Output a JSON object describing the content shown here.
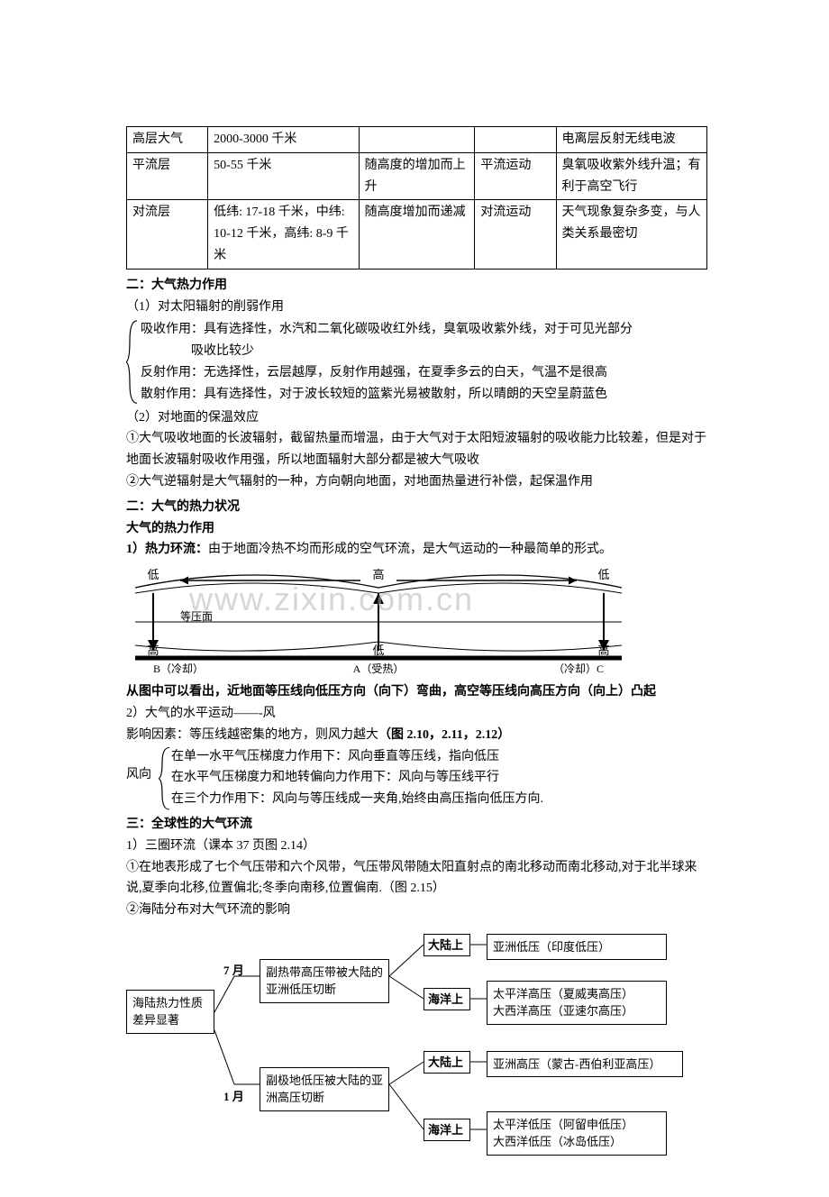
{
  "table": {
    "cols_width": [
      "14%",
      "26%",
      "20%",
      "14%",
      "26%"
    ],
    "rows": [
      [
        "高层大气",
        "2000-3000 千米",
        "",
        "",
        "电离层反射无线电波"
      ],
      [
        "平流层",
        "50-55 千米",
        "随高度的增加而上升",
        "平流运动",
        "臭氧吸收紫外线升温；有利于高空飞行"
      ],
      [
        "对流层",
        "低纬: 17-18 千米，中纬: 10-12 千米，高纬: 8-9 千米",
        "随高度增加而递减",
        "对流运动",
        "天气现象复杂多变，与人类关系最密切"
      ]
    ]
  },
  "sec1_title": "二：大气热力作用",
  "sec1_line1": "（1）对太阳辐射的削弱作用",
  "sec1_b1": "吸收作用：具有选择性，水汽和二氧化碳吸收红外线，臭氧吸收紫外线，对于可见光部分",
  "sec1_b1b": "吸收比较少",
  "sec1_b2": "反射作用：无选择性，云层越厚，反射作用越强，在夏季多云的白天，气温不是很高",
  "sec1_b3": "散射作用：具有选择性，对于波长较短的篮紫光易被散射，所以晴朗的天空呈蔚蓝色",
  "sec1_line2": "（2）对地面的保温效应",
  "sec1_p1": "①大气吸收地面的长波辐射，截留热量而增温，由于大气对于太阳短波辐射的吸收能力比较差，但是对于地面长波辐射吸收作用强，所以地面辐射大部分都是被大气吸收",
  "sec1_p2": "②大气逆辐射是大气辐射的一种，方向朝向地面，对地面热量进行补偿，起保温作用",
  "sec2_title": "二：大气的热力状况",
  "sec2_sub": "大气的热力作用",
  "sec2_line1_a": "1）热力环流：",
  "sec2_line1_b": "由于地面冷热不均而形成的空气环流，是大气运动的一种最简单的形式。",
  "diagram": {
    "top_labels": [
      "低",
      "高",
      "低"
    ],
    "bottom_labels": [
      "高",
      "低",
      "高"
    ],
    "axis_labels": [
      "B（冷却）",
      "A（受热）",
      "（冷却）C"
    ],
    "isobar_label": "等压面",
    "watermark": "www.zixin.com.cn",
    "line_color": "#000000",
    "bg": "#ffffff"
  },
  "sec2_concl": "从图中可以看出，近地面等压线向低压方向（向下）弯曲，高空等压线向高压方向（向上）凸起",
  "sec2_wind_title": "2）大气的水平运动——-风",
  "sec2_wind_line": "影响因素：等压线越密集的地方，则风力越大",
  "sec2_wind_ref": "（图 2.10，2.11，2.12）",
  "wind_label": "风向",
  "wind_items": [
    "在单一水平气压梯度力作用下：风向垂直等压线，指向低压",
    "在水平气压梯度力和地转偏向力作用下：风向与等压线平行",
    "在三个力作用下：风向与等压线成一夹角,始终由高压指向低压方向."
  ],
  "sec3_title": "三：全球性的大气环流",
  "sec3_line1": "1）三圈环流（课本 37 页图 2.14）",
  "sec3_p1": "①在地表形成了七个气压带和六个风带，气压带风带随太阳直射点的南北移动而南北移动,对于北半球来说,夏季向北移,位置偏北;冬季向南移,位置偏南.（图 2.15）",
  "sec3_p2": "②海陆分布对大气环流的影响",
  "flow": {
    "left_box": "海陆热力性质差异显著",
    "month7": "7 月",
    "month1": "1 月",
    "mid7": "副热带高压带被大陆的亚洲低压切断",
    "mid1": "副极地低压被大陆的亚洲高压切断",
    "tags": [
      "大陆上",
      "海洋上",
      "大陆上",
      "海洋上"
    ],
    "r1": "亚洲低压（印度低压）",
    "r2a": "太平洋高压（夏威夷高压）",
    "r2b": "大西洋高压（亚速尔高压）",
    "r3": "亚洲高压（蒙古-西伯利亚高压）",
    "r4a": "太平洋低压（阿留申低压）",
    "r4b": "大西洋低压（冰岛低压）"
  }
}
